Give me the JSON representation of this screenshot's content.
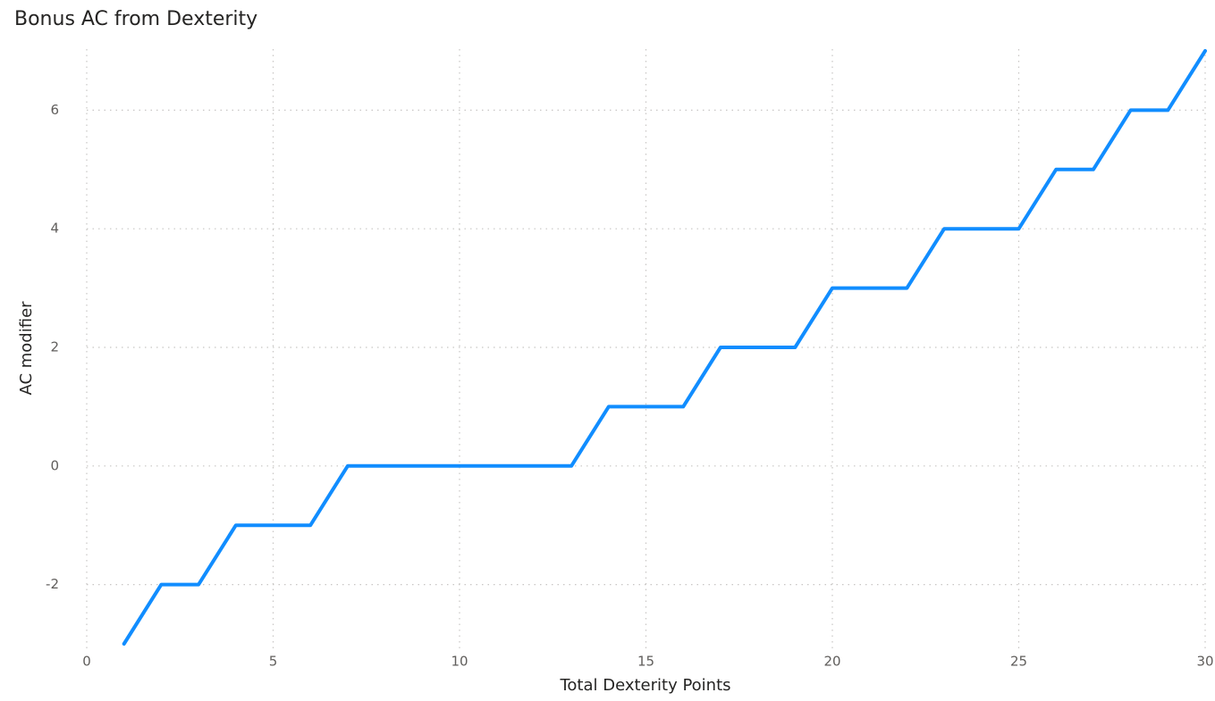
{
  "chart_data": {
    "type": "line",
    "title": "Bonus AC from Dexterity",
    "x_label": "Total Dexterity Points",
    "y_label": "AC modifier",
    "x": [
      1,
      2,
      3,
      4,
      5,
      6,
      7,
      8,
      9,
      10,
      11,
      12,
      13,
      14,
      15,
      16,
      17,
      18,
      19,
      20,
      21,
      22,
      23,
      24,
      25,
      26,
      27,
      28,
      29,
      30
    ],
    "series": [
      {
        "name": "AC modifier",
        "color": "#118dff",
        "values": [
          -3,
          -2,
          -2,
          -1,
          -1,
          -1,
          0,
          0,
          0,
          0,
          0,
          0,
          0,
          1,
          1,
          1,
          2,
          2,
          2,
          3,
          3,
          3,
          4,
          4,
          4,
          5,
          5,
          6,
          6,
          7
        ]
      }
    ],
    "xlim": [
      0,
      30
    ],
    "xticks": [
      0,
      5,
      10,
      15,
      20,
      25,
      30
    ],
    "ylim": [
      -3,
      7
    ],
    "yticks": [
      -2,
      0,
      2,
      4,
      6
    ],
    "grid": true
  }
}
